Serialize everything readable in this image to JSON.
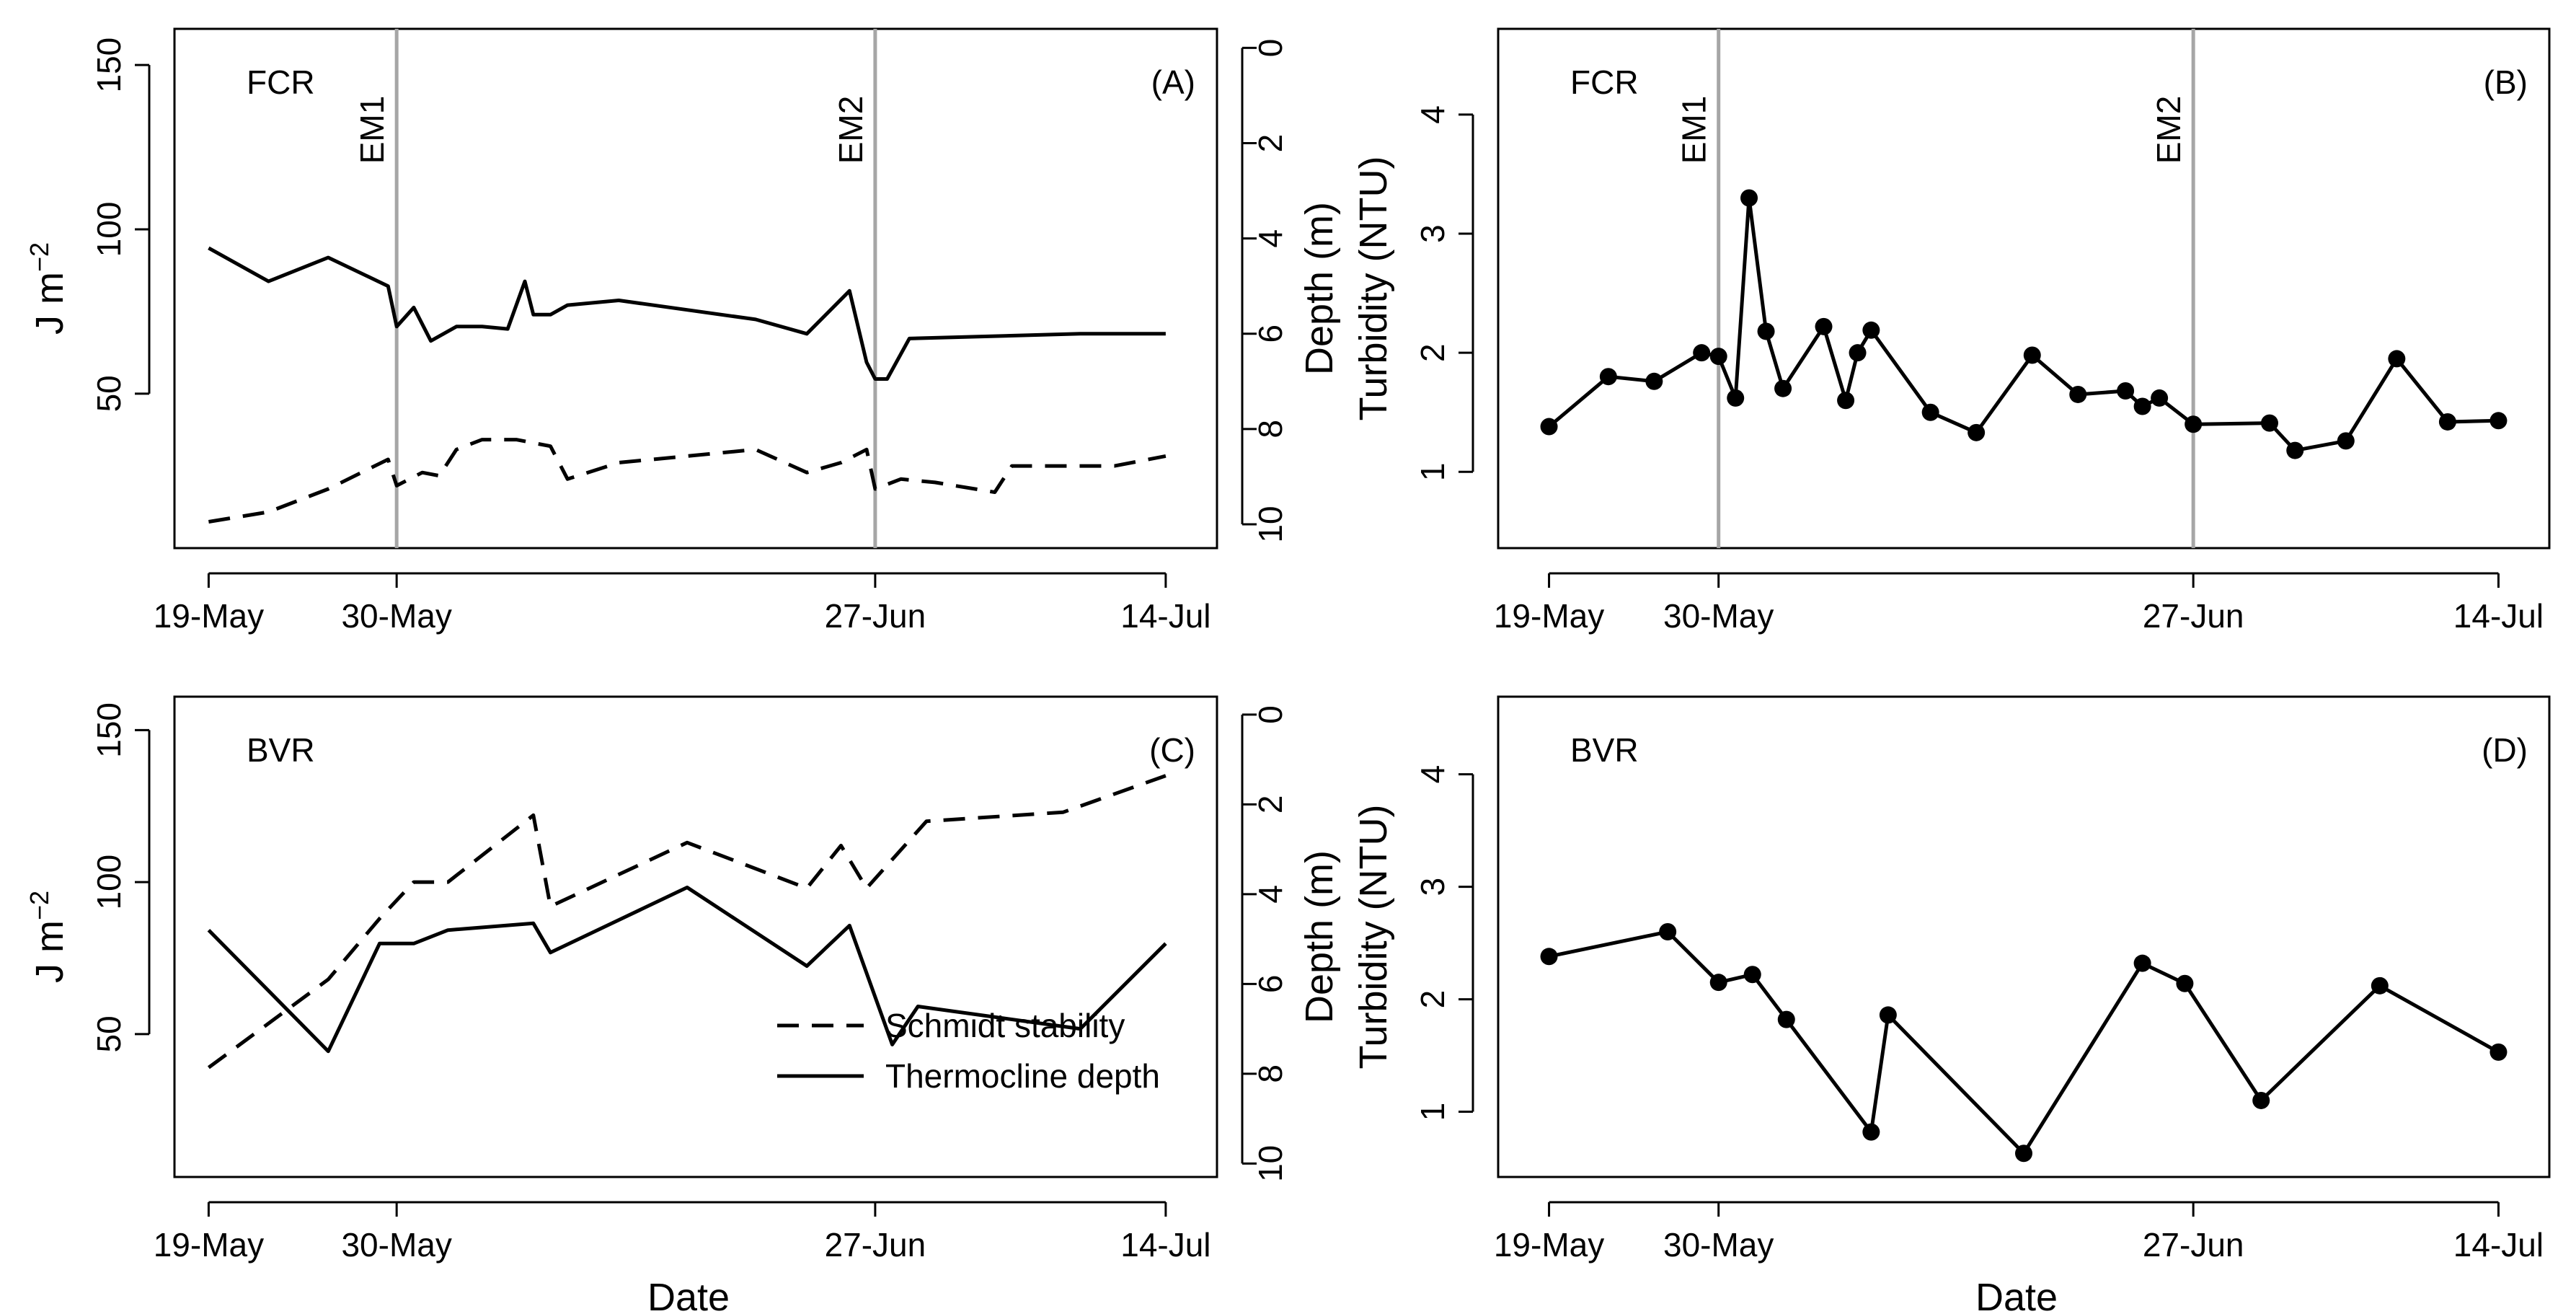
{
  "chart_data": [
    {
      "id": "A",
      "type": "line",
      "panel_label": "(A)",
      "site_label": "FCR",
      "ylabel_left": "J m",
      "ylabel_left_sup": "−2",
      "ylabel_right": "Depth (m)",
      "xlabel": "",
      "x_ticks": [
        {
          "day": 0,
          "label": "19-May"
        },
        {
          "day": 11,
          "label": "30-May"
        },
        {
          "day": 39,
          "label": "27-Jun"
        },
        {
          "day": 56,
          "label": "14-Jul"
        }
      ],
      "xlim": [
        -2,
        59
      ],
      "y_ticks_left": [
        50,
        100,
        150
      ],
      "ylim_left": [
        3,
        161
      ],
      "y_ticks_right": [
        0,
        2,
        4,
        6,
        8,
        10
      ],
      "ylim_right_reversed": [
        10.5,
        -0.4
      ],
      "events": [
        {
          "day": 11,
          "label": "EM1"
        },
        {
          "day": 39,
          "label": "EM2"
        }
      ],
      "series": [
        {
          "name": "Schmidt stability",
          "axis": "left",
          "style": "dashed",
          "x": [
            0,
            3.5,
            7,
            10.5,
            11,
            12.5,
            13.5,
            14.5,
            16,
            18,
            20,
            21,
            24,
            28,
            32,
            35,
            37,
            38.5,
            39,
            40.5,
            42.5,
            46,
            47,
            49,
            51,
            53,
            56
          ],
          "y": [
            11,
            14,
            21,
            30,
            22,
            26,
            25,
            33,
            36,
            36,
            34,
            24,
            29,
            31,
            33,
            26,
            29,
            33,
            21,
            24,
            23,
            20,
            28,
            28,
            28,
            28,
            31
          ]
        },
        {
          "name": "Thermocline depth",
          "axis": "right",
          "style": "solid",
          "x": [
            0,
            3.5,
            7,
            10.5,
            11,
            12,
            13,
            14.5,
            16,
            17.5,
            18.5,
            19,
            20,
            21,
            24,
            28,
            32,
            35,
            37.5,
            38.5,
            39,
            39.7,
            41,
            46,
            51,
            56
          ],
          "y": [
            4.2,
            4.9,
            4.4,
            5.0,
            5.85,
            5.45,
            6.15,
            5.85,
            5.85,
            5.9,
            4.9,
            5.6,
            5.6,
            5.4,
            5.3,
            5.5,
            5.7,
            6.0,
            5.1,
            6.6,
            6.95,
            6.95,
            6.1,
            6.05,
            6.0,
            6.0
          ]
        }
      ]
    },
    {
      "id": "B",
      "type": "line",
      "panel_label": "(B)",
      "site_label": "FCR",
      "ylabel_left": "Turbidity (NTU)",
      "xlabel": "",
      "x_ticks": [
        {
          "day": 0,
          "label": "19-May"
        },
        {
          "day": 10,
          "label": "30-May"
        },
        {
          "day": 38,
          "label": "27-Jun"
        },
        {
          "day": 56,
          "label": "14-Jul"
        }
      ],
      "xlim": [
        -3,
        59
      ],
      "y_ticks_left": [
        1,
        2,
        3,
        4
      ],
      "ylim_left": [
        0.36,
        4.72
      ],
      "events": [
        {
          "day": 10,
          "label": "EM1"
        },
        {
          "day": 38,
          "label": "EM2"
        }
      ],
      "series": [
        {
          "name": "Turbidity",
          "style": "solid-points",
          "x": [
            0,
            3.5,
            6.2,
            9,
            10,
            11,
            11.8,
            12.8,
            13.8,
            16.2,
            17.5,
            18.2,
            19,
            22.5,
            25.2,
            28.5,
            31.2,
            34,
            35,
            36,
            38,
            42.5,
            44,
            47,
            50,
            53,
            56
          ],
          "y": [
            1.38,
            1.8,
            1.76,
            2.0,
            1.97,
            1.62,
            3.3,
            2.18,
            1.7,
            2.22,
            1.6,
            2.0,
            2.19,
            1.5,
            1.33,
            1.98,
            1.65,
            1.68,
            1.55,
            1.62,
            1.4,
            1.41,
            1.18,
            1.26,
            1.95,
            1.42,
            1.43
          ]
        }
      ]
    },
    {
      "id": "C",
      "type": "line",
      "panel_label": "(C)",
      "site_label": "BVR",
      "ylabel_left": "J m",
      "ylabel_left_sup": "−2",
      "ylabel_right": "Depth (m)",
      "xlabel": "Date",
      "x_ticks": [
        {
          "day": 0,
          "label": "19-May"
        },
        {
          "day": 11,
          "label": "30-May"
        },
        {
          "day": 39,
          "label": "27-Jun"
        },
        {
          "day": 56,
          "label": "14-Jul"
        }
      ],
      "xlim": [
        -2,
        59
      ],
      "y_ticks_left": [
        50,
        100,
        150
      ],
      "ylim_left": [
        3,
        161
      ],
      "y_ticks_right": [
        0,
        2,
        4,
        6,
        8,
        10
      ],
      "ylim_right_reversed": [
        10.3,
        -0.4
      ],
      "legend": {
        "position": "bottom-right",
        "entries": [
          {
            "label": "Schmidt stability",
            "style": "dashed"
          },
          {
            "label": "Thermocline depth",
            "style": "solid"
          }
        ]
      },
      "series": [
        {
          "name": "Schmidt stability",
          "axis": "left",
          "style": "dashed",
          "x": [
            0,
            7,
            10,
            12,
            14,
            19,
            20,
            28,
            35,
            37,
            38.5,
            42,
            50,
            56
          ],
          "y": [
            39,
            68,
            88,
            100,
            100,
            122,
            92,
            113,
            98,
            112,
            98,
            120,
            123,
            135
          ]
        },
        {
          "name": "Thermocline depth",
          "axis": "right",
          "style": "solid",
          "x": [
            0,
            7,
            10,
            12,
            14,
            19,
            20,
            28,
            35,
            37.5,
            40,
            41.5,
            51,
            56
          ],
          "y": [
            4.8,
            7.5,
            5.1,
            5.1,
            4.8,
            4.65,
            5.3,
            3.85,
            5.6,
            4.7,
            7.35,
            6.5,
            7.0,
            5.1
          ]
        }
      ]
    },
    {
      "id": "D",
      "type": "line",
      "panel_label": "(D)",
      "site_label": "BVR",
      "ylabel_left": "Turbidity (NTU)",
      "xlabel": "Date",
      "x_ticks": [
        {
          "day": 0,
          "label": "19-May"
        },
        {
          "day": 10,
          "label": "30-May"
        },
        {
          "day": 38,
          "label": "27-Jun"
        },
        {
          "day": 56,
          "label": "14-Jul"
        }
      ],
      "xlim": [
        -3,
        59
      ],
      "y_ticks_left": [
        1,
        2,
        3,
        4
      ],
      "ylim_left": [
        0.42,
        4.69
      ],
      "series": [
        {
          "name": "Turbidity",
          "style": "solid-points",
          "x": [
            0,
            7,
            10,
            12,
            14,
            19,
            20,
            28,
            35,
            37.5,
            42,
            49,
            56
          ],
          "y": [
            2.38,
            2.6,
            2.15,
            2.22,
            1.82,
            0.82,
            1.86,
            0.63,
            2.32,
            2.14,
            1.1,
            2.12,
            1.53
          ]
        }
      ]
    }
  ]
}
